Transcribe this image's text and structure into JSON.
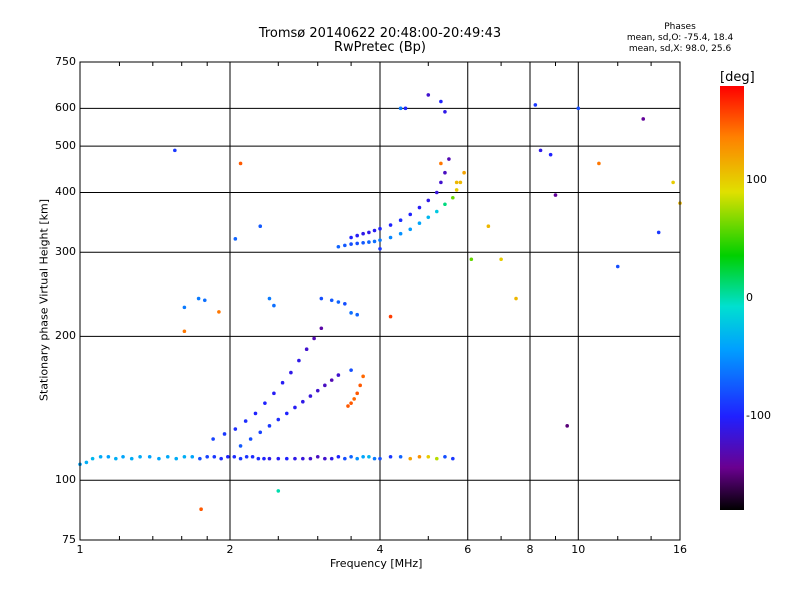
{
  "chart_data": {
    "type": "scatter",
    "title": "Tromsø 20140622 20:48:00-20:49:43",
    "subtitle": "RwPretec (Bp)",
    "stats": {
      "heading": "Phases",
      "line_o": "mean, sd,O: -75.4, 18.4",
      "line_x": "mean, sd,X:  98.0, 25.6"
    },
    "xlabel": "Frequency [MHz]",
    "ylabel": "Stationary phase Virtual Height [km]",
    "x_scale": "log",
    "y_scale": "log",
    "xlim": [
      1,
      16
    ],
    "ylim": [
      75,
      750
    ],
    "xticks": [
      1,
      2,
      4,
      6,
      8,
      10,
      16
    ],
    "xtick_labels": [
      "1",
      "2",
      "4",
      "6",
      "8",
      "10",
      "16"
    ],
    "x_gridlines": [
      2,
      4,
      6,
      8,
      10
    ],
    "yticks": [
      75,
      100,
      200,
      300,
      400,
      500,
      600,
      750
    ],
    "ytick_labels": [
      "75",
      "100",
      "200",
      "300",
      "400",
      "500",
      "600",
      "750"
    ],
    "y_gridlines": [
      100,
      200,
      300,
      400,
      500,
      600
    ],
    "grid": true,
    "colorbar": {
      "label": "[deg]",
      "range": [
        -180,
        180
      ],
      "ticks": [
        100,
        0,
        -100
      ],
      "tick_labels": [
        "100",
        "0",
        "-100"
      ],
      "colormap": "rainbow (black-purple-blue-cyan-green-yellow-red)"
    },
    "series": [
      {
        "description_free": true,
        "x": [
          1.0,
          1.03,
          1.06,
          1.1,
          1.14,
          1.18,
          1.22,
          1.27,
          1.32,
          1.38,
          1.44,
          1.5,
          1.56,
          1.62,
          1.68,
          1.74,
          1.8,
          1.86,
          1.92,
          1.98,
          2.04,
          2.1,
          2.16,
          2.22,
          2.28,
          2.34,
          2.4,
          2.5,
          2.6,
          2.7,
          2.8,
          2.9,
          3.0,
          3.1,
          3.2,
          3.3,
          3.4,
          3.5,
          3.6,
          3.7,
          3.8,
          3.9,
          4.0,
          4.2,
          4.4,
          4.6,
          4.8,
          5.0,
          5.2,
          5.4,
          5.6
        ],
        "y": [
          108,
          109,
          111,
          112,
          112,
          111,
          112,
          111,
          112,
          112,
          111,
          112,
          111,
          112,
          112,
          111,
          112,
          112,
          111,
          112,
          112,
          111,
          112,
          112,
          111,
          111,
          111,
          111,
          111,
          111,
          111,
          111,
          112,
          111,
          111,
          112,
          111,
          112,
          111,
          112,
          112,
          111,
          111,
          112,
          112,
          111,
          112,
          112,
          111,
          112,
          111
        ],
        "phase": [
          -40,
          -35,
          -30,
          -38,
          -42,
          -35,
          -40,
          -36,
          -38,
          -42,
          -40,
          -38,
          -36,
          -35,
          -40,
          -80,
          -85,
          -90,
          -95,
          -100,
          -95,
          -90,
          -92,
          -95,
          -95,
          -100,
          -110,
          -105,
          -100,
          -110,
          -115,
          -120,
          -125,
          -120,
          -110,
          -100,
          -80,
          -70,
          -50,
          -40,
          -30,
          -60,
          -80,
          -90,
          -70,
          120,
          130,
          100,
          80,
          -80,
          -90
        ]
      },
      {
        "x": [
          1.85,
          1.95,
          2.05,
          2.15,
          2.25,
          2.35,
          2.45,
          2.55,
          2.65,
          2.75,
          2.85,
          2.95,
          3.05
        ],
        "y": [
          122,
          125,
          128,
          133,
          138,
          145,
          152,
          160,
          168,
          178,
          188,
          198,
          208
        ],
        "phase": [
          -85,
          -90,
          -95,
          -95,
          -100,
          -100,
          -105,
          -105,
          -110,
          -110,
          -120,
          -130,
          -135
        ]
      },
      {
        "x": [
          2.1,
          2.2,
          2.3,
          2.4,
          2.5,
          2.6,
          2.7,
          2.8,
          2.9,
          3.0,
          3.1,
          3.2,
          3.3
        ],
        "y": [
          118,
          122,
          126,
          130,
          134,
          138,
          142,
          146,
          150,
          154,
          158,
          162,
          166
        ],
        "phase": [
          -75,
          -80,
          -85,
          -90,
          -95,
          -100,
          -105,
          -110,
          -115,
          -120,
          -125,
          -130,
          -120
        ]
      },
      {
        "x": [
          3.3,
          3.4,
          3.5,
          3.6,
          3.7,
          3.8,
          3.9,
          4.0,
          4.2,
          4.4,
          4.6,
          4.8,
          5.0,
          5.2,
          5.4,
          5.6,
          5.7,
          5.8,
          5.9
        ],
        "y": [
          308,
          310,
          312,
          313,
          314,
          315,
          316,
          318,
          322,
          328,
          335,
          345,
          355,
          365,
          378,
          390,
          405,
          420,
          440
        ],
        "phase": [
          -70,
          -75,
          -80,
          -80,
          -75,
          -70,
          -65,
          -60,
          -55,
          -50,
          -45,
          -40,
          -30,
          -20,
          10,
          60,
          100,
          110,
          120
        ]
      },
      {
        "x": [
          3.5,
          3.6,
          3.7,
          3.8,
          3.9,
          4.0,
          4.2,
          4.4,
          4.6,
          4.8,
          5.0,
          5.2,
          5.3,
          5.4,
          5.5
        ],
        "y": [
          322,
          325,
          328,
          330,
          333,
          336,
          342,
          350,
          360,
          372,
          385,
          400,
          420,
          440,
          470
        ],
        "phase": [
          -100,
          -105,
          -110,
          -110,
          -105,
          -100,
          -100,
          -95,
          -100,
          -105,
          -110,
          -115,
          -120,
          -125,
          -130
        ]
      },
      {
        "x": [
          3.45,
          3.5,
          3.55,
          3.6,
          3.65,
          3.7
        ],
        "y": [
          143,
          145,
          148,
          152,
          158,
          165
        ],
        "phase": [
          150,
          150,
          145,
          150,
          150,
          145
        ]
      },
      {
        "x": [
          1.62,
          1.73,
          1.78,
          2.05,
          2.3,
          2.4,
          2.45,
          3.05,
          3.2,
          3.3,
          3.4,
          3.5,
          3.6,
          4.0,
          4.5,
          5.0,
          5.3,
          5.4
        ],
        "y": [
          230,
          240,
          238,
          320,
          340,
          240,
          232,
          240,
          238,
          236,
          234,
          224,
          222,
          305,
          600,
          640,
          620,
          590
        ],
        "phase": [
          -60,
          -60,
          -65,
          -70,
          -75,
          -60,
          -65,
          -80,
          -75,
          -70,
          -80,
          -65,
          -70,
          -90,
          -100,
          -120,
          -100,
          -110
        ]
      },
      {
        "x": [
          1.55,
          1.62,
          1.75,
          1.9,
          2.1,
          2.5,
          3.5,
          4.2,
          4.4,
          5.3,
          5.7,
          6.1,
          6.6,
          7.0,
          7.5,
          8.2,
          8.4,
          8.8,
          9.0,
          9.5,
          10.0,
          11.0,
          12.0,
          13.5,
          14.5,
          15.5,
          16.0
        ],
        "y": [
          490,
          205,
          87,
          225,
          460,
          95,
          170,
          220,
          600,
          460,
          420,
          290,
          340,
          290,
          240,
          610,
          490,
          480,
          395,
          130,
          600,
          460,
          280,
          570,
          330,
          420,
          380
        ],
        "phase": [
          -90,
          140,
          150,
          140,
          150,
          0,
          -80,
          160,
          -60,
          140,
          110,
          60,
          110,
          100,
          110,
          -90,
          -110,
          -100,
          -140,
          -150,
          -80,
          140,
          -80,
          -140,
          -90,
          100,
          110
        ]
      }
    ]
  }
}
